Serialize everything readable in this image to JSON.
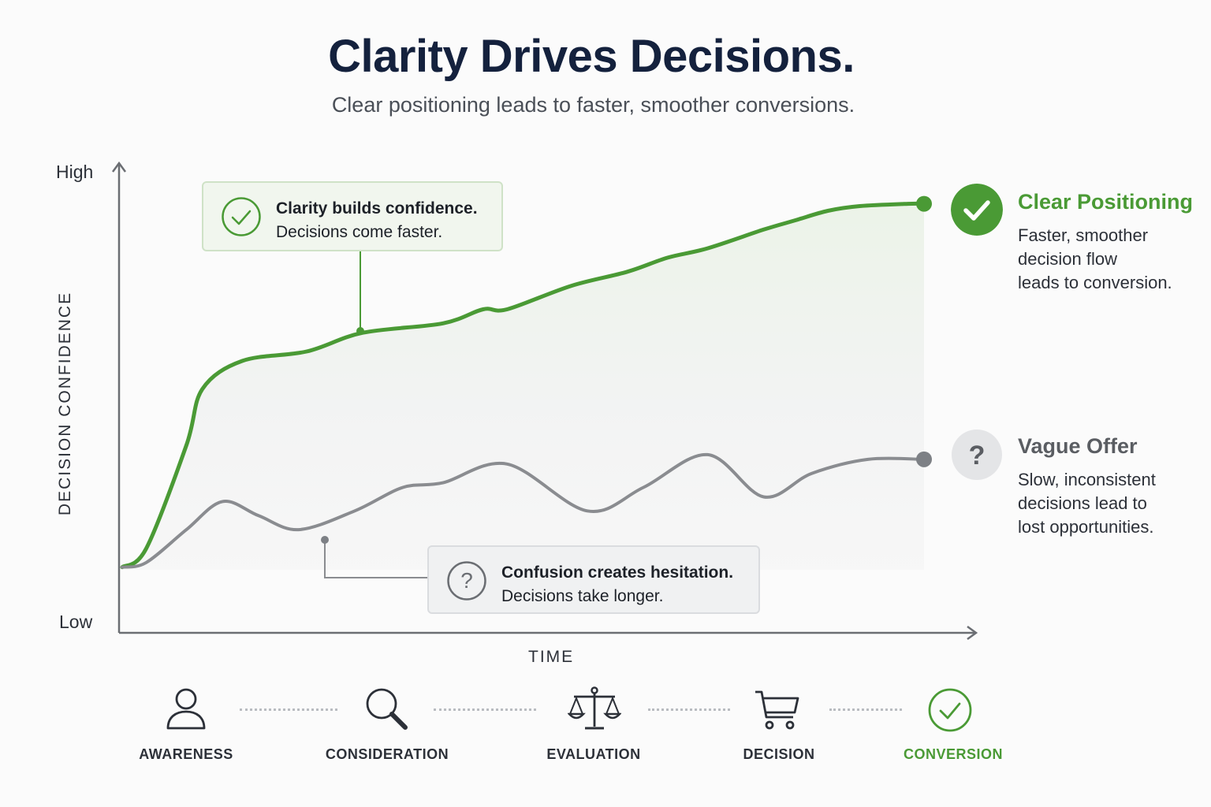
{
  "header": {
    "title": "Clarity Drives Decisions.",
    "subtitle": "Clear positioning leads to faster, smoother conversions."
  },
  "chart_data": {
    "type": "line",
    "title": "Clarity Drives Decisions.",
    "subtitle": "Clear positioning leads to faster, smoother conversions.",
    "xlabel": "TIME",
    "ylabel": "DECISION CONFIDENCE",
    "y_ticks": [
      "Low",
      "High"
    ],
    "x_range": [
      0,
      100
    ],
    "y_range": [
      0,
      100
    ],
    "grid": false,
    "legend_placement": "right",
    "colors": {
      "clear": "#4a9a35",
      "vague": "#8a8c90"
    },
    "series": [
      {
        "name": "Clear Positioning",
        "x": [
          0,
          3,
          8,
          10,
          15,
          23,
          30,
          40,
          45,
          48,
          56,
          63,
          68,
          73,
          80,
          84,
          88,
          92,
          98,
          100
        ],
        "y": [
          14,
          18,
          40,
          52,
          58,
          60,
          64,
          66,
          69,
          69,
          74,
          77,
          80,
          82,
          86,
          88,
          90,
          91,
          91.5,
          91.5
        ]
      },
      {
        "name": "Vague Offer",
        "x": [
          0,
          3,
          8,
          12.5,
          17,
          22,
          29,
          35,
          40,
          48,
          58,
          65,
          73,
          80,
          86,
          93,
          100
        ],
        "y": [
          14,
          15,
          22,
          28,
          25,
          22,
          26,
          31,
          32,
          36,
          26,
          31,
          38,
          29,
          34,
          37,
          37
        ]
      }
    ],
    "annotations": [
      {
        "title": "Clarity builds confidence.",
        "text": "Decisions come faster."
      },
      {
        "title": "Confusion creates hesitation.",
        "text": "Decisions take longer."
      }
    ]
  },
  "legend": {
    "clear": {
      "icon": "check-circle-icon",
      "title": "Clear Positioning",
      "lines": [
        "Faster, smoother",
        "decision flow",
        "leads to conversion."
      ]
    },
    "vague": {
      "icon": "question-circle-icon",
      "title": "Vague Offer",
      "lines": [
        "Slow, inconsistent",
        "decisions lead to",
        "lost opportunities."
      ]
    }
  },
  "stages": [
    {
      "label": "AWARENESS",
      "icon": "person-icon"
    },
    {
      "label": "CONSIDERATION",
      "icon": "magnifier-icon"
    },
    {
      "label": "EVALUATION",
      "icon": "scales-icon"
    },
    {
      "label": "DECISION",
      "icon": "cart-icon"
    },
    {
      "label": "CONVERSION",
      "icon": "check-circle-icon"
    }
  ]
}
